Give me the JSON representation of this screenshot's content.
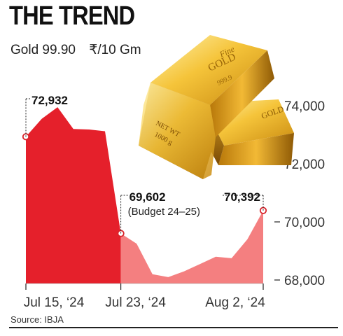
{
  "header": {
    "title": "THE TREND",
    "subtitle": "Gold 99.90",
    "unit": "₹/10 Gm"
  },
  "source": "Source: IBJA",
  "image_caption": {
    "bar_text_1": "Fine",
    "bar_text_2": "GOLD",
    "bar_text_3": "999.9",
    "bar_text_4": "NET WT",
    "bar_text_5": "1000 g"
  },
  "colors": {
    "red_area": "#e5202b",
    "pink_area": "#f47f80",
    "marker": "#d8232a"
  },
  "chart_data": {
    "type": "area",
    "title": "THE TREND",
    "subtitle": "Gold 99.90",
    "ylabel": "₹/10 Gm",
    "ylim": [
      67800,
      75200
    ],
    "yticks": [
      68000,
      70000,
      72000,
      74000
    ],
    "ytick_labels": [
      "68,000",
      "70,000",
      "72,000",
      "74,000"
    ],
    "xtick_labels": [
      "Jul 15, ‘24",
      "Jul 23, ‘24",
      "Aug 2, ‘24"
    ],
    "xtick_index": [
      0,
      6,
      15
    ],
    "grid": false,
    "series": [
      {
        "color": "#e5202b",
        "x": [
          0,
          1,
          2,
          3,
          4,
          5,
          6
        ],
        "values": [
          72932,
          73550,
          73950,
          73200,
          73180,
          73120,
          69602
        ]
      },
      {
        "color": "#f47f80",
        "x": [
          6,
          7,
          8,
          9,
          10,
          11,
          12,
          13,
          14,
          15
        ],
        "values": [
          69602,
          69250,
          68200,
          68100,
          68300,
          68550,
          68800,
          68750,
          69400,
          70392
        ]
      }
    ],
    "annotations": [
      {
        "index": 0,
        "value": 72932,
        "label": "72,932",
        "note": ""
      },
      {
        "index": 6,
        "value": 69602,
        "label": "69,602",
        "note": "(Budget 24–25)"
      },
      {
        "index": 15,
        "value": 70392,
        "label": "70,392",
        "note": ""
      }
    ]
  }
}
